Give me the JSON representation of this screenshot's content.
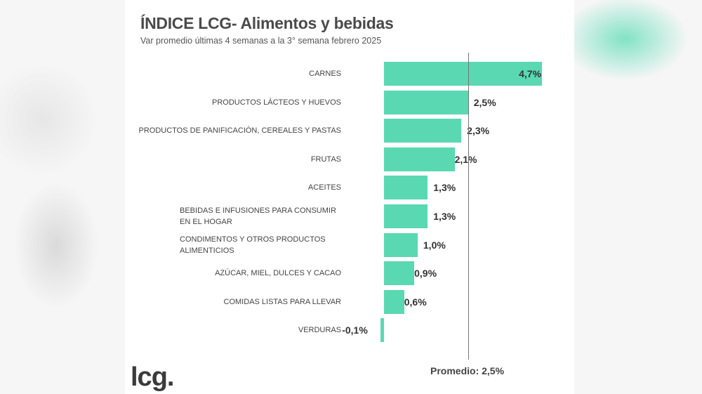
{
  "chart_data": {
    "type": "bar",
    "orientation": "horizontal",
    "title": "ÍNDICE LCG- Alimentos y bebidas",
    "subtitle": "Var promedio últimas 4 semanas a la 3° semana febrero 2025",
    "categories": [
      "CARNES",
      "PRODUCTOS LÁCTEOS Y HUEVOS",
      "PRODUCTOS DE PANIFICACIÓN, CEREALES Y PASTAS",
      "FRUTAS",
      "ACEITES",
      "BEBIDAS E INFUSIONES PARA CONSUMIR EN EL HOGAR",
      "CONDIMENTOS Y OTROS PRODUCTOS ALIMENTICIOS",
      "AZÚCAR, MIEL, DULCES Y CACAO",
      "COMIDAS LISTAS PARA LLEVAR",
      "VERDURAS"
    ],
    "values": [
      4.7,
      2.5,
      2.3,
      2.1,
      1.3,
      1.3,
      1.0,
      0.9,
      0.6,
      -0.1
    ],
    "value_labels": [
      "4,7%",
      "2,5%",
      "2,3%",
      "2,1%",
      "1,3%",
      "1,3%",
      "1,0%",
      "0,9%",
      "0,6%",
      "-0,1%"
    ],
    "reference_line": {
      "value": 2.5,
      "label": "Promedio: 2,5%"
    },
    "bar_color": "#5ad8b2",
    "grid": false
  },
  "logo": "lcg."
}
